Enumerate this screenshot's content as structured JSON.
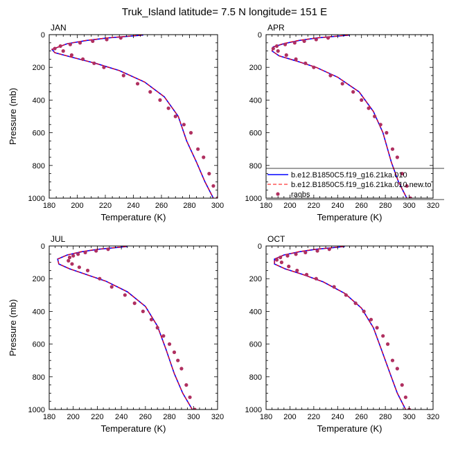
{
  "figure": {
    "title": "Truk_Island  latitude= 7.5 N longitude= 151 E"
  },
  "legend": {
    "entries": [
      {
        "label": "b.e12.B1850C5.f19_g16.21ka.010",
        "color": "#0000ff",
        "style": "solid"
      },
      {
        "label": "b.e12.B1850C5.f19_g16.21ka.010.new.to",
        "color": "#ff0000",
        "style": "dashed"
      },
      {
        "label": "raobs",
        "color": "#b03060",
        "style": "dots"
      }
    ]
  },
  "chart_data": [
    {
      "type": "line",
      "panel_label": "JAN",
      "xlabel": "Temperature (K)",
      "ylabel": "Pressure (mb)",
      "xlim": [
        180,
        300
      ],
      "xticks": [
        180,
        200,
        220,
        240,
        260,
        280,
        300
      ],
      "ylim": [
        1000,
        0
      ],
      "yticks": [
        0,
        200,
        400,
        600,
        800,
        1000
      ],
      "series": [
        {
          "name": "b.e12.B1850C5.f19_g16.21ka.010",
          "color": "#0000ff",
          "x": [
            247,
            236,
            222,
            207,
            193,
            182,
            184,
            197,
            213,
            230,
            248,
            262,
            272,
            278,
            285,
            291,
            297
          ],
          "y": [
            3,
            10,
            20,
            35,
            55,
            90,
            110,
            140,
            175,
            220,
            290,
            380,
            500,
            650,
            780,
            900,
            1000
          ]
        },
        {
          "name": "b.e12.B1850C5.f19_g16.21ka.010.new.to",
          "color": "#ff0000",
          "x": [
            246,
            235,
            221,
            206,
            193,
            182,
            184,
            197,
            213,
            230,
            248,
            262,
            272,
            278,
            285,
            291,
            297
          ],
          "y": [
            3,
            10,
            20,
            35,
            55,
            90,
            110,
            140,
            175,
            220,
            290,
            380,
            500,
            650,
            780,
            900,
            1000
          ]
        },
        {
          "name": "raobs",
          "color": "#b03060",
          "x": [
            231,
            221,
            211,
            202,
            195,
            188,
            184,
            190,
            196,
            204,
            212,
            219,
            233,
            243,
            252,
            259,
            265,
            270,
            276,
            281,
            286,
            290,
            294,
            297,
            300
          ],
          "y": [
            20,
            30,
            40,
            50,
            60,
            70,
            85,
            100,
            125,
            150,
            175,
            200,
            250,
            300,
            350,
            400,
            450,
            500,
            550,
            600,
            700,
            750,
            850,
            925,
            1000
          ]
        }
      ]
    },
    {
      "type": "line",
      "panel_label": "APR",
      "xlabel": "Temperature (K)",
      "ylabel": "",
      "xlim": [
        180,
        320
      ],
      "xticks": [
        180,
        200,
        220,
        240,
        260,
        280,
        300,
        320
      ],
      "ylim": [
        1000,
        0
      ],
      "yticks": [
        0,
        200,
        400,
        600,
        800,
        1000
      ],
      "series": [
        {
          "name": "b.e12.B1850C5.f19_g16.21ka.010",
          "color": "#0000ff",
          "x": [
            250,
            238,
            223,
            208,
            195,
            186,
            185,
            191,
            205,
            222,
            240,
            258,
            270,
            278,
            285,
            291,
            298
          ],
          "y": [
            3,
            10,
            20,
            35,
            55,
            75,
            100,
            130,
            160,
            200,
            260,
            350,
            470,
            600,
            780,
            900,
            1000
          ]
        },
        {
          "name": "b.e12.B1850C5.f19_g16.21ka.010.new.to",
          "color": "#ff0000",
          "x": [
            249,
            237,
            222,
            207,
            194,
            186,
            185,
            191,
            205,
            222,
            240,
            258,
            270,
            278,
            285,
            291,
            298
          ],
          "y": [
            3,
            10,
            20,
            35,
            55,
            75,
            100,
            130,
            160,
            200,
            260,
            350,
            470,
            600,
            780,
            900,
            1000
          ]
        },
        {
          "name": "raobs",
          "color": "#b03060",
          "x": [
            232,
            222,
            212,
            204,
            196,
            189,
            186,
            190,
            197,
            205,
            213,
            220,
            234,
            244,
            253,
            260,
            266,
            271,
            276,
            281,
            286,
            290,
            294,
            298,
            301
          ],
          "y": [
            20,
            30,
            40,
            50,
            60,
            70,
            85,
            100,
            125,
            150,
            175,
            200,
            250,
            300,
            350,
            400,
            450,
            500,
            550,
            600,
            700,
            750,
            850,
            925,
            1000
          ]
        }
      ]
    },
    {
      "type": "line",
      "panel_label": "JUL",
      "xlabel": "Temperature (K)",
      "ylabel": "Pressure (mb)",
      "xlim": [
        180,
        320
      ],
      "xticks": [
        180,
        200,
        220,
        240,
        260,
        280,
        300,
        320
      ],
      "ylim": [
        1000,
        0
      ],
      "yticks": [
        0,
        200,
        400,
        600,
        800,
        1000
      ],
      "series": [
        {
          "name": "b.e12.B1850C5.f19_g16.21ka.010",
          "color": "#0000ff",
          "x": [
            245,
            235,
            221,
            207,
            195,
            187,
            188,
            197,
            211,
            227,
            245,
            260,
            270,
            277,
            284,
            291,
            299
          ],
          "y": [
            3,
            10,
            20,
            35,
            55,
            80,
            110,
            140,
            175,
            215,
            280,
            370,
            490,
            630,
            780,
            900,
            1000
          ]
        },
        {
          "name": "b.e12.B1850C5.f19_g16.21ka.010.new.to",
          "color": "#ff0000",
          "x": [
            244,
            234,
            220,
            206,
            195,
            187,
            188,
            197,
            211,
            227,
            245,
            260,
            270,
            277,
            284,
            291,
            299
          ],
          "y": [
            3,
            10,
            20,
            35,
            55,
            80,
            110,
            140,
            175,
            215,
            280,
            370,
            490,
            630,
            780,
            900,
            1000
          ]
        },
        {
          "name": "raobs",
          "color": "#b03060",
          "x": [
            229,
            219,
            210,
            204,
            200,
            197,
            196,
            199,
            205,
            212,
            222,
            232,
            243,
            251,
            258,
            265,
            270,
            275,
            280,
            284,
            287,
            290,
            294,
            297,
            301
          ],
          "y": [
            20,
            30,
            40,
            50,
            60,
            70,
            90,
            110,
            130,
            150,
            200,
            250,
            300,
            350,
            400,
            450,
            500,
            550,
            600,
            650,
            700,
            750,
            850,
            925,
            1000
          ]
        }
      ]
    },
    {
      "type": "line",
      "panel_label": "OCT",
      "xlabel": "Temperature (K)",
      "ylabel": "",
      "xlim": [
        180,
        320
      ],
      "xticks": [
        180,
        200,
        220,
        240,
        260,
        280,
        300,
        320
      ],
      "ylim": [
        1000,
        0
      ],
      "yticks": [
        0,
        200,
        400,
        600,
        800,
        1000
      ],
      "series": [
        {
          "name": "b.e12.B1850C5.f19_g16.21ka.010",
          "color": "#0000ff",
          "x": [
            246,
            236,
            222,
            208,
            195,
            187,
            187,
            196,
            211,
            228,
            246,
            260,
            270,
            277,
            284,
            290,
            297
          ],
          "y": [
            3,
            10,
            20,
            35,
            55,
            80,
            110,
            140,
            175,
            220,
            290,
            380,
            500,
            640,
            780,
            900,
            1000
          ]
        },
        {
          "name": "b.e12.B1850C5.f19_g16.21ka.010.new.to",
          "color": "#ff0000",
          "x": [
            245,
            235,
            221,
            207,
            195,
            187,
            187,
            196,
            211,
            228,
            246,
            260,
            270,
            277,
            284,
            290,
            297
          ],
          "y": [
            3,
            10,
            20,
            35,
            55,
            80,
            110,
            140,
            175,
            220,
            290,
            380,
            500,
            640,
            780,
            900,
            1000
          ]
        },
        {
          "name": "raobs",
          "color": "#b03060",
          "x": [
            233,
            223,
            213,
            205,
            198,
            192,
            189,
            193,
            199,
            206,
            214,
            222,
            237,
            247,
            255,
            262,
            268,
            273,
            278,
            282,
            286,
            290,
            294,
            297,
            300
          ],
          "y": [
            20,
            30,
            40,
            50,
            60,
            70,
            85,
            100,
            125,
            150,
            175,
            200,
            250,
            300,
            350,
            400,
            450,
            500,
            550,
            600,
            700,
            750,
            850,
            925,
            1000
          ]
        }
      ]
    }
  ]
}
